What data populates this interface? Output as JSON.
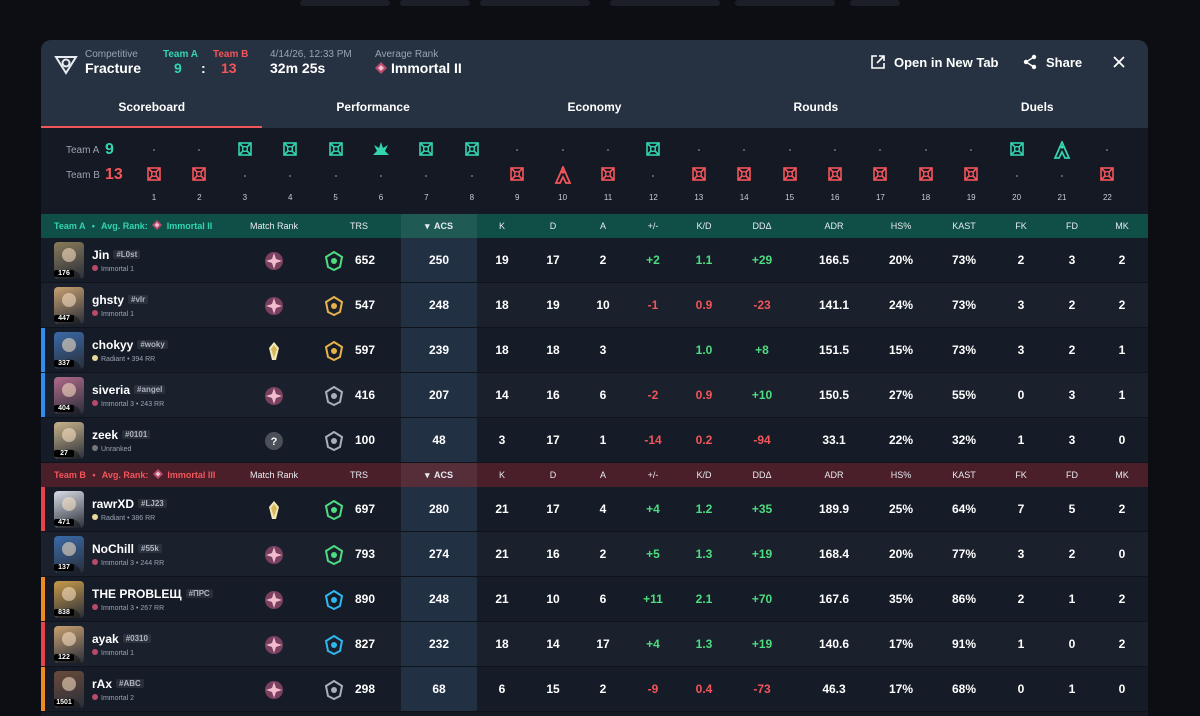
{
  "header": {
    "mode": "Competitive",
    "map": "Fracture",
    "team_a_label": "Team A",
    "team_b_label": "Team B",
    "team_a_score": "9",
    "colon": ":",
    "team_b_score": "13",
    "date": "4/14/26, 12:33 PM",
    "duration": "32m 25s",
    "avg_rank_label": "Average Rank",
    "avg_rank_value": "Immortal II",
    "open_new_tab": "Open in New Tab",
    "share": "Share"
  },
  "tabs": [
    "Scoreboard",
    "Performance",
    "Economy",
    "Rounds",
    "Duels"
  ],
  "active_tab": "Scoreboard",
  "timeline": {
    "team_a_label": "Team A",
    "team_b_label": "Team B",
    "team_a_score": "9",
    "team_b_score": "13",
    "rounds": [
      {
        "n": "1",
        "winner": "B",
        "icon": "elimination"
      },
      {
        "n": "2",
        "winner": "B",
        "icon": "elimination"
      },
      {
        "n": "3",
        "winner": "A",
        "icon": "elimination"
      },
      {
        "n": "4",
        "winner": "A",
        "icon": "elimination"
      },
      {
        "n": "5",
        "winner": "A",
        "icon": "elimination"
      },
      {
        "n": "6",
        "winner": "A",
        "icon": "detonation"
      },
      {
        "n": "7",
        "winner": "A",
        "icon": "elimination"
      },
      {
        "n": "8",
        "winner": "A",
        "icon": "elimination"
      },
      {
        "n": "9",
        "winner": "B",
        "icon": "elimination"
      },
      {
        "n": "10",
        "winner": "B",
        "icon": "defuse"
      },
      {
        "n": "11",
        "winner": "B",
        "icon": "elimination"
      },
      {
        "n": "12",
        "winner": "A",
        "icon": "elimination"
      },
      {
        "n": "13",
        "winner": "B",
        "icon": "elimination"
      },
      {
        "n": "14",
        "winner": "B",
        "icon": "elimination"
      },
      {
        "n": "15",
        "winner": "B",
        "icon": "elimination"
      },
      {
        "n": "16",
        "winner": "B",
        "icon": "elimination"
      },
      {
        "n": "17",
        "winner": "B",
        "icon": "elimination"
      },
      {
        "n": "18",
        "winner": "B",
        "icon": "elimination"
      },
      {
        "n": "19",
        "winner": "B",
        "icon": "elimination"
      },
      {
        "n": "20",
        "winner": "A",
        "icon": "elimination"
      },
      {
        "n": "21",
        "winner": "A",
        "icon": "defuse"
      },
      {
        "n": "22",
        "winner": "B",
        "icon": "elimination"
      }
    ]
  },
  "columns": [
    "Match Rank",
    "TRS",
    "ACS",
    "K",
    "D",
    "A",
    "+/-",
    "K/D",
    "DDΔ",
    "ADR",
    "HS%",
    "KAST",
    "FK",
    "FD",
    "MK"
  ],
  "team_a": {
    "label": "Team A",
    "sep": "•",
    "avg_label": "Avg. Rank:",
    "avg_rank": "Immortal II",
    "players": [
      {
        "name": "Jin",
        "tag": "#L0st",
        "rank": "Immortal 1",
        "level": "176",
        "agent_color": "#8a7a5a",
        "accent": "",
        "trs": "652",
        "acs": "250",
        "k": "19",
        "d": "17",
        "a": "2",
        "pm": "+2",
        "kd": "1.1",
        "dd": "+29",
        "adr": "166.5",
        "hs": "20%",
        "kast": "73%",
        "fk": "2",
        "fd": "3",
        "mk": "2"
      },
      {
        "name": "ghsty",
        "tag": "#vlr",
        "rank": "Immortal 1",
        "level": "447",
        "agent_color": "#c8a070",
        "accent": "",
        "trs": "547",
        "acs": "248",
        "k": "18",
        "d": "19",
        "a": "10",
        "pm": "-1",
        "kd": "0.9",
        "dd": "-23",
        "adr": "141.1",
        "hs": "24%",
        "kast": "73%",
        "fk": "3",
        "fd": "2",
        "mk": "2"
      },
      {
        "name": "chokyy",
        "tag": "#woky",
        "rank": "Radiant • 394 RR",
        "level": "337",
        "agent_color": "#3a6aa8",
        "accent": "#2f8ff0",
        "trs": "597",
        "acs": "239",
        "k": "18",
        "d": "18",
        "a": "3",
        "pm": "",
        "kd": "1.0",
        "dd": "+8",
        "adr": "151.5",
        "hs": "15%",
        "kast": "73%",
        "fk": "3",
        "fd": "2",
        "mk": "1"
      },
      {
        "name": "siveria",
        "tag": "#angel",
        "rank": "Immortal 3 • 243 RR",
        "level": "404",
        "agent_color": "#b06a8a",
        "accent": "#2f8ff0",
        "trs": "416",
        "acs": "207",
        "k": "14",
        "d": "16",
        "a": "6",
        "pm": "-2",
        "kd": "0.9",
        "dd": "+10",
        "adr": "150.5",
        "hs": "27%",
        "kast": "55%",
        "fk": "0",
        "fd": "3",
        "mk": "1"
      },
      {
        "name": "zeek",
        "tag": "#0101",
        "rank": "Unranked",
        "level": "27",
        "agent_color": "#c8b48a",
        "accent": "",
        "trs": "100",
        "acs": "48",
        "k": "3",
        "d": "17",
        "a": "1",
        "pm": "-14",
        "kd": "0.2",
        "dd": "-94",
        "adr": "33.1",
        "hs": "22%",
        "kast": "32%",
        "fk": "1",
        "fd": "3",
        "mk": "0"
      }
    ]
  },
  "team_b": {
    "label": "Team B",
    "sep": "•",
    "avg_label": "Avg. Rank:",
    "avg_rank": "Immortal III",
    "players": [
      {
        "name": "rawrXD",
        "tag": "#LJ23",
        "rank": "Radiant • 386 RR",
        "level": "471",
        "agent_color": "#d8dde6",
        "accent": "#e8434a",
        "trs": "697",
        "acs": "280",
        "k": "21",
        "d": "17",
        "a": "4",
        "pm": "+4",
        "kd": "1.2",
        "dd": "+35",
        "adr": "189.9",
        "hs": "25%",
        "kast": "64%",
        "fk": "7",
        "fd": "5",
        "mk": "2"
      },
      {
        "name": "NoChill",
        "tag": "#55k",
        "rank": "Immortal 3 • 244 RR",
        "level": "137",
        "agent_color": "#3a6aa8",
        "accent": "",
        "trs": "793",
        "acs": "274",
        "k": "21",
        "d": "16",
        "a": "2",
        "pm": "+5",
        "kd": "1.3",
        "dd": "+19",
        "adr": "168.4",
        "hs": "20%",
        "kast": "77%",
        "fk": "3",
        "fd": "2",
        "mk": "0"
      },
      {
        "name": "THE PROBLEЩ",
        "tag": "#ПРС",
        "rank": "Immortal 3 • 267 RR",
        "level": "838",
        "agent_color": "#c89a4a",
        "accent": "#f08a24",
        "trs": "890",
        "acs": "248",
        "k": "21",
        "d": "10",
        "a": "6",
        "pm": "+11",
        "kd": "2.1",
        "dd": "+70",
        "adr": "167.6",
        "hs": "35%",
        "kast": "86%",
        "fk": "2",
        "fd": "1",
        "mk": "2"
      },
      {
        "name": "ayak",
        "tag": "#0310",
        "rank": "Immortal 1",
        "level": "122",
        "agent_color": "#c8a070",
        "accent": "#e8434a",
        "trs": "827",
        "acs": "232",
        "k": "18",
        "d": "14",
        "a": "17",
        "pm": "+4",
        "kd": "1.3",
        "dd": "+19",
        "adr": "140.6",
        "hs": "17%",
        "kast": "91%",
        "fk": "1",
        "fd": "0",
        "mk": "2"
      },
      {
        "name": "rAx",
        "tag": "#ABC",
        "rank": "Immortal 2",
        "level": "1501",
        "agent_color": "#6a4a3a",
        "accent": "#f08a24",
        "trs": "298",
        "acs": "68",
        "k": "6",
        "d": "15",
        "a": "2",
        "pm": "-9",
        "kd": "0.4",
        "dd": "-73",
        "adr": "46.3",
        "hs": "17%",
        "kast": "68%",
        "fk": "0",
        "fd": "1",
        "mk": "0"
      }
    ]
  },
  "colors": {
    "team_a": "#33d4b0",
    "team_b": "#f2555a",
    "positive": "#4ddc80",
    "negative": "#f2555a",
    "accent_blue": "#2f8ff0",
    "accent_orange": "#f08a24"
  }
}
